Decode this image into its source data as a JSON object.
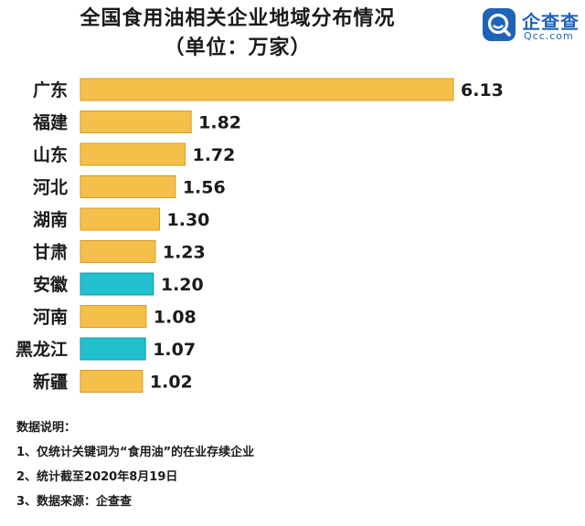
{
  "header": {
    "title": "全国食用油相关企业地域分布情况",
    "subtitle": "（单位：万家）"
  },
  "logo": {
    "name_cn": "企查查",
    "name_en": "Qcc.com"
  },
  "chart_data": {
    "type": "bar",
    "orientation": "horizontal",
    "categories": [
      "广东",
      "福建",
      "山东",
      "河北",
      "湖南",
      "甘肃",
      "安徽",
      "河南",
      "黑龙江",
      "新疆"
    ],
    "values": [
      6.13,
      1.82,
      1.72,
      1.56,
      1.3,
      1.23,
      1.2,
      1.08,
      1.07,
      1.02
    ],
    "value_labels": [
      "6.13",
      "1.82",
      "1.72",
      "1.56",
      "1.30",
      "1.23",
      "1.20",
      "1.08",
      "1.07",
      "1.02"
    ],
    "highlight": [
      false,
      false,
      false,
      false,
      false,
      false,
      true,
      false,
      true,
      false
    ],
    "colors": {
      "bar": "#f5c04a",
      "highlight": "#22bfcc",
      "bar_stroke": "#d99a22",
      "highlight_stroke": "#119aa6"
    },
    "xlim": [
      0,
      6.13
    ],
    "grid": false,
    "legend": "none"
  },
  "notes": {
    "heading": "数据说明：",
    "items": [
      "1、仅统计关键词为“食用油”的在业存续企业",
      "2、统计截至2020年8月19日",
      "3、数据来源：企查查"
    ]
  }
}
